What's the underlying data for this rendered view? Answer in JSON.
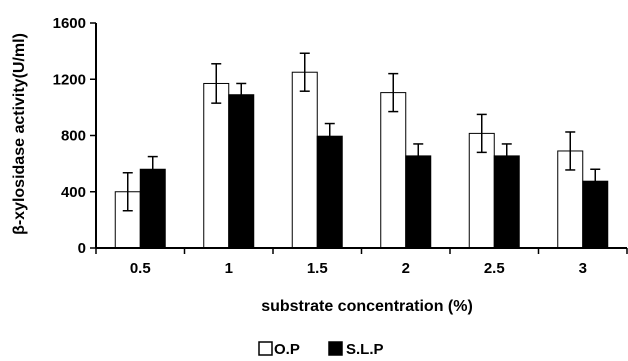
{
  "chart_data": {
    "type": "bar",
    "categories": [
      "0.5",
      "1",
      "1.5",
      "2",
      "2.5",
      "3"
    ],
    "series": [
      {
        "name": "O.P",
        "values": [
          400,
          1170,
          1250,
          1105,
          815,
          690
        ],
        "errors": [
          135,
          140,
          135,
          135,
          135,
          135
        ],
        "color": "#ffffff"
      },
      {
        "name": "S.L.P",
        "values": [
          560,
          1090,
          795,
          655,
          655,
          475
        ],
        "errors": [
          90,
          80,
          90,
          85,
          85,
          85
        ],
        "color": "#000000"
      }
    ],
    "xlabel": "substrate concentration (%)",
    "ylabel": "β-xylosidase activity(U/ml)",
    "yticks": [
      "0",
      "400",
      "800",
      "1200",
      "1600"
    ],
    "ylim": [
      0,
      1600
    ],
    "grid": false,
    "legend_position": "bottom-center"
  }
}
